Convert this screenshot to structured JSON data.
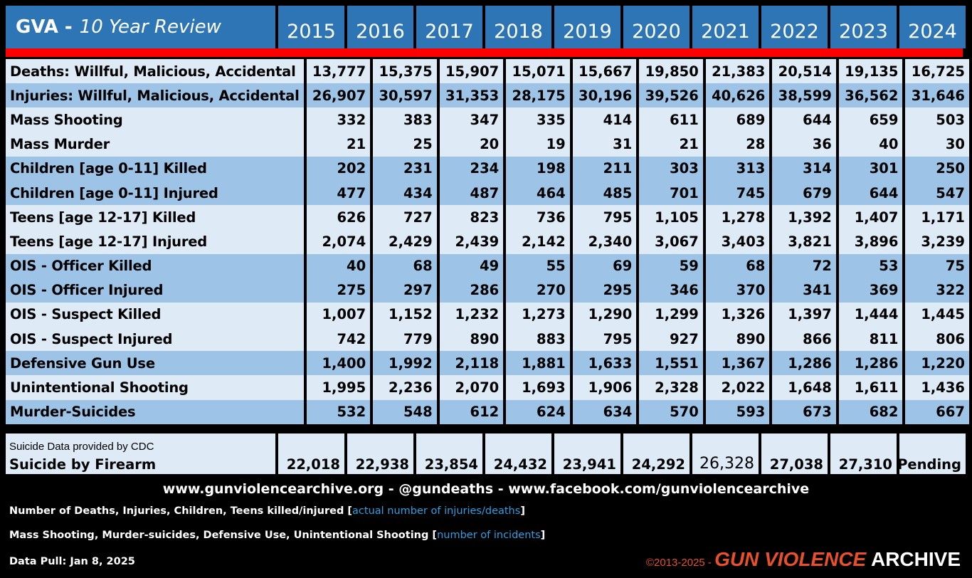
{
  "chart_data": {
    "type": "table",
    "title": "GVA -",
    "subtitle": "10 Year Review",
    "columns": [
      "2015",
      "2016",
      "2017",
      "2018",
      "2019",
      "2020",
      "2021",
      "2022",
      "2023",
      "2024"
    ],
    "rows": [
      {
        "label": "Deaths:  Willful, Malicious, Accidental",
        "values": [
          "13,777",
          "15,375",
          "15,907",
          "15,071",
          "15,667",
          "19,850",
          "21,383",
          "20,514",
          "19,135",
          "16,725"
        ]
      },
      {
        "label": "Injuries: Willful, Malicious, Accidental",
        "values": [
          "26,907",
          "30,597",
          "31,353",
          "28,175",
          "30,196",
          "39,526",
          "40,626",
          "38,599",
          "36,562",
          "31,646"
        ]
      },
      {
        "label": "Mass Shooting",
        "values": [
          "332",
          "383",
          "347",
          "335",
          "414",
          "611",
          "689",
          "644",
          "659",
          "503"
        ]
      },
      {
        "label": "Mass Murder",
        "values": [
          "21",
          "25",
          "20",
          "19",
          "31",
          "21",
          "28",
          "36",
          "40",
          "30"
        ]
      },
      {
        "label": "Children [age 0-11] Killed",
        "values": [
          "202",
          "231",
          "234",
          "198",
          "211",
          "303",
          "313",
          "314",
          "301",
          "250"
        ]
      },
      {
        "label": "Children [age 0-11] Injured",
        "values": [
          "477",
          "434",
          "487",
          "464",
          "485",
          "701",
          "745",
          "679",
          "644",
          "547"
        ]
      },
      {
        "label": "Teens [age 12-17] Killed",
        "values": [
          "626",
          "727",
          "823",
          "736",
          "795",
          "1,105",
          "1,278",
          "1,392",
          "1,407",
          "1,171"
        ]
      },
      {
        "label": "Teens [age 12-17] Injured",
        "values": [
          "2,074",
          "2,429",
          "2,439",
          "2,142",
          "2,340",
          "3,067",
          "3,403",
          "3,821",
          "3,896",
          "3,239"
        ]
      },
      {
        "label": "OIS - Officer Killed",
        "values": [
          "40",
          "68",
          "49",
          "55",
          "69",
          "59",
          "68",
          "72",
          "53",
          "75"
        ]
      },
      {
        "label": "OIS - Officer Injured",
        "values": [
          "275",
          "297",
          "286",
          "270",
          "295",
          "346",
          "370",
          "341",
          "369",
          "322"
        ]
      },
      {
        "label": "OIS - Suspect Killed",
        "values": [
          "1,007",
          "1,152",
          "1,232",
          "1,273",
          "1,290",
          "1,299",
          "1,326",
          "1,397",
          "1,444",
          "1,445"
        ]
      },
      {
        "label": "OIS - Suspect Injured",
        "values": [
          "742",
          "779",
          "890",
          "883",
          "795",
          "927",
          "890",
          "866",
          "811",
          "806"
        ]
      },
      {
        "label": "Defensive Gun Use",
        "values": [
          "1,400",
          "1,992",
          "2,118",
          "1,881",
          "1,633",
          "1,551",
          "1,367",
          "1,286",
          "1,286",
          "1,220"
        ]
      },
      {
        "label": "Unintentional Shooting",
        "values": [
          "1,995",
          "2,236",
          "2,070",
          "1,693",
          "1,906",
          "2,328",
          "2,022",
          "1,648",
          "1,611",
          "1,436"
        ]
      },
      {
        "label": "Murder-Suicides",
        "values": [
          "532",
          "548",
          "612",
          "624",
          "634",
          "570",
          "593",
          "673",
          "682",
          "667"
        ]
      }
    ],
    "suicide": {
      "source_note": "Suicide Data provided by CDC",
      "label": "Suicide by Firearm",
      "values": [
        "22,018",
        "22,938",
        "23,854",
        "24,432",
        "23,941",
        "24,292",
        "26,328",
        "27,038",
        "27,310",
        "Pending"
      ]
    }
  },
  "footer": {
    "links": "www.gunviolencearchive.org  -  @gundeaths  -  www.facebook.com/gunviolencearchive",
    "note1": "Number of Deaths, Injuries, Children, Teens  killed/injured [",
    "note1_hl": "actual number of injuries/deaths",
    "note1_end": "]",
    "note2": "Mass Shooting, Murder-suicides, Defensive Use, Unintentional Shooting [",
    "note2_hl": "number of incidents",
    "note2_end": "]",
    "data_pull": "Data Pull: Jan 8, 2025",
    "copyright": "©2013-2025 - ",
    "brand_gun": "GUN VIOLENCE",
    "brand_archive": "ARCHIVE"
  },
  "colors": {
    "header_blue": "#2e75b6",
    "accent_red": "#ff0000",
    "row_light": "#deebf7",
    "row_dark": "#9dc3e6",
    "highlight_blue": "#2e9fe0",
    "brand_orange": "#e8502a"
  }
}
